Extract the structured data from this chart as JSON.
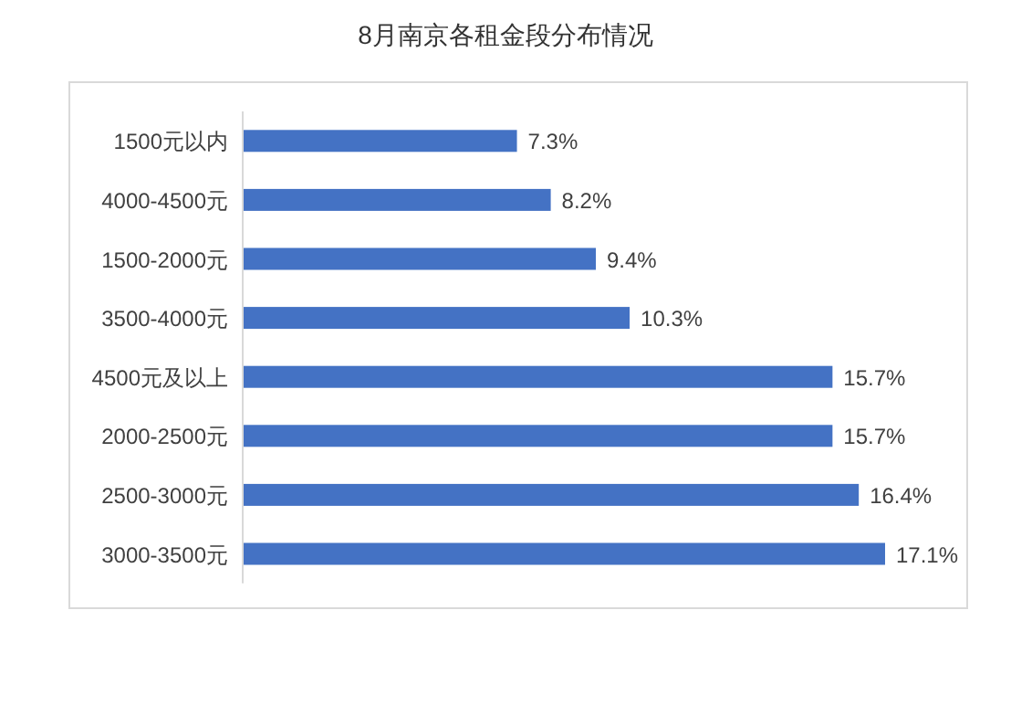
{
  "chart_data": {
    "type": "bar",
    "orientation": "horizontal",
    "title": "8月南京各租金段分布情况",
    "categories": [
      "1500元以内",
      "4000-4500元",
      "1500-2000元",
      "3500-4000元",
      "4500元及以上",
      "2000-2500元",
      "2500-3000元",
      "3000-3500元"
    ],
    "values": [
      7.3,
      8.2,
      9.4,
      10.3,
      15.7,
      15.7,
      16.4,
      17.1
    ],
    "value_labels": [
      "7.3%",
      "8.2%",
      "9.4%",
      "10.3%",
      "15.7%",
      "15.7%",
      "16.4%",
      "17.1%"
    ],
    "color": "#4472c4"
  }
}
